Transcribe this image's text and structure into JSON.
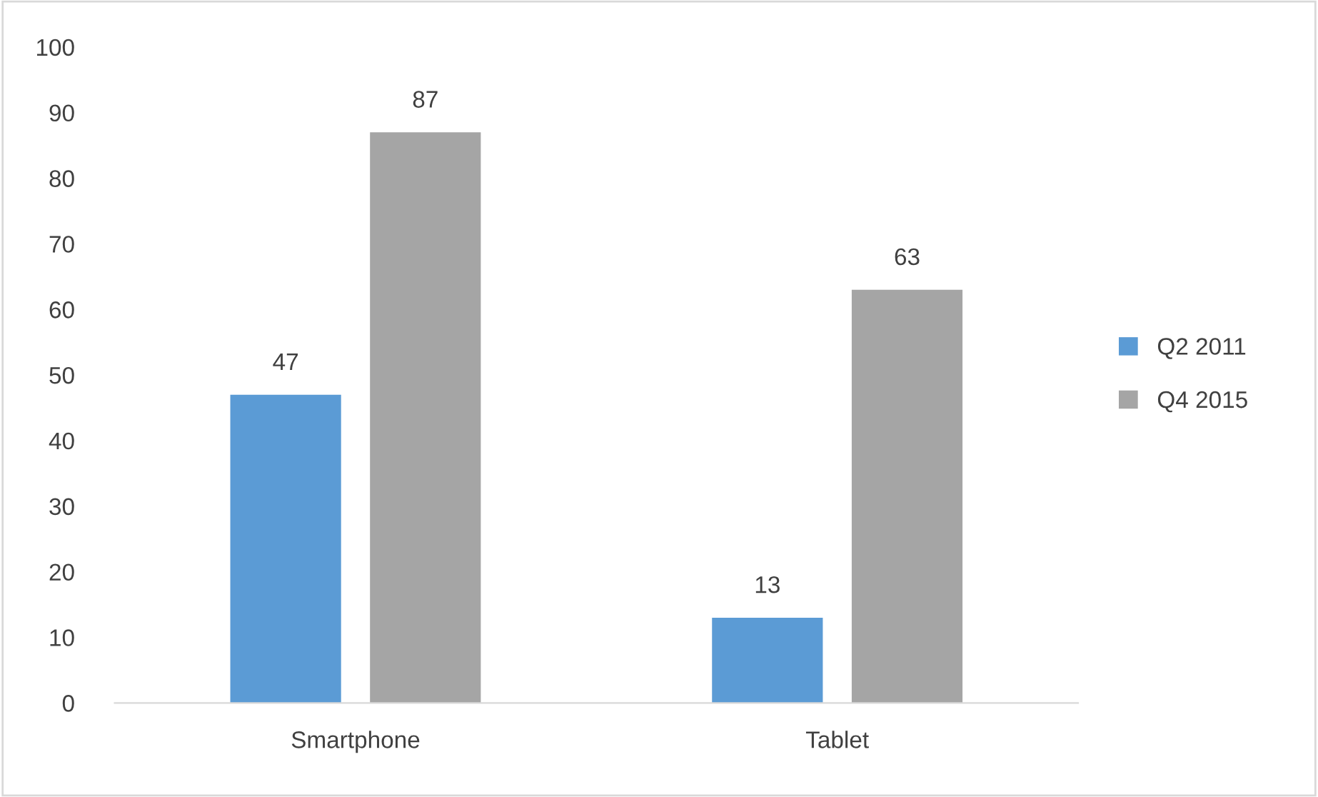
{
  "chart_data": {
    "type": "bar",
    "categories": [
      "Smartphone",
      "Tablet"
    ],
    "series": [
      {
        "name": "Q2 2011",
        "color": "#5b9bd5",
        "values": [
          47,
          13
        ]
      },
      {
        "name": "Q4 2015",
        "color": "#a5a5a5",
        "values": [
          87,
          63
        ]
      }
    ],
    "ylim": [
      0,
      100
    ],
    "yticks": [
      0,
      10,
      20,
      30,
      40,
      50,
      60,
      70,
      80,
      90,
      100
    ],
    "data_labels": true,
    "grid": false,
    "legend": "right"
  }
}
